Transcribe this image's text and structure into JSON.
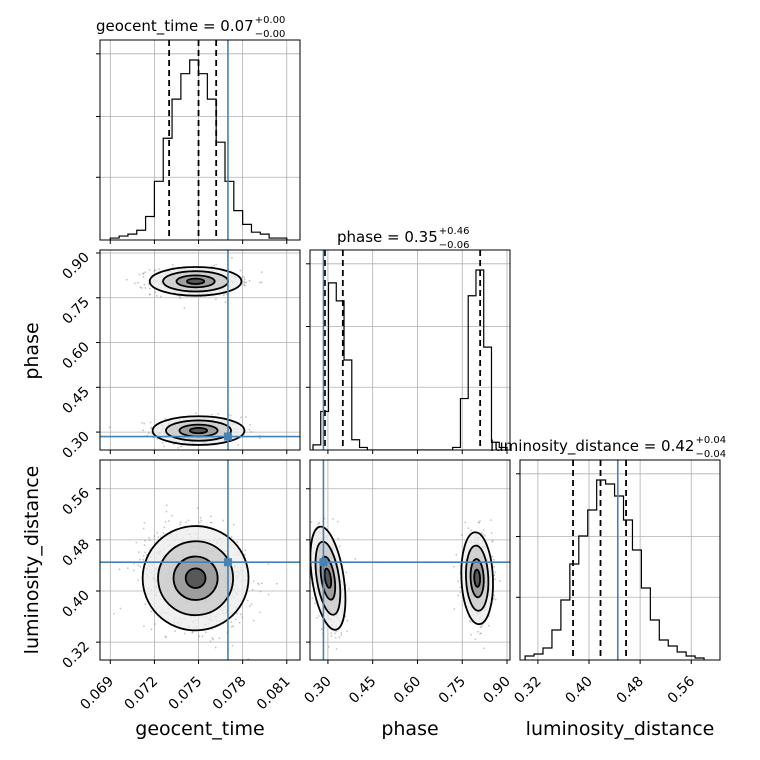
{
  "colors": {
    "truth": "#4682b4",
    "hist": "#000000",
    "grid": "#b0b0b0",
    "scatter": "#7f7f7f"
  },
  "chart_data": {
    "type": "corner",
    "parameters": [
      "geocent_time",
      "phase",
      "luminosity_distance"
    ],
    "truths": {
      "geocent_time": 0.077,
      "phase": 0.285,
      "luminosity_distance": 0.445
    },
    "titles": [
      {
        "base": "geocent_time = 0.07",
        "plus": "+0.00",
        "minus": "−0.00"
      },
      {
        "base": "phase = 0.35",
        "plus": "+0.46",
        "minus": "−0.06"
      },
      {
        "base": "luminosity_distance = 0.42",
        "plus": "+0.04",
        "minus": "−0.04"
      }
    ],
    "axis_labels": {
      "x": [
        "geocent_time",
        "phase",
        "luminosity_distance"
      ],
      "y": [
        "phase",
        "luminosity_distance"
      ]
    },
    "ticks": {
      "geocent_time": {
        "values": [
          0.069,
          0.072,
          0.075,
          0.078,
          0.081
        ],
        "labels": [
          "0.069",
          "0.072",
          "0.075",
          "0.078",
          "0.081"
        ],
        "range": [
          0.0683,
          0.0819
        ]
      },
      "phase": {
        "values": [
          0.3,
          0.45,
          0.6,
          0.75,
          0.9
        ],
        "labels": [
          "0.30",
          "0.45",
          "0.60",
          "0.75",
          "0.90"
        ],
        "range": [
          0.24,
          0.91
        ]
      },
      "luminosity_distance": {
        "values": [
          0.32,
          0.4,
          0.48,
          0.56
        ],
        "labels": [
          "0.32",
          "0.40",
          "0.48",
          "0.56"
        ],
        "range": [
          0.292,
          0.605
        ]
      }
    },
    "quantiles": {
      "geocent_time": [
        0.073,
        0.075,
        0.0762
      ],
      "phase": [
        0.29,
        0.35,
        0.81
      ],
      "luminosity_distance": [
        0.375,
        0.418,
        0.458
      ]
    },
    "histograms": {
      "geocent_time": {
        "edges_range": [
          0.069,
          0.081
        ],
        "counts": [
          1,
          2,
          3,
          5,
          12,
          30,
          52,
          72,
          85,
          92,
          85,
          72,
          50,
          30,
          15,
          8,
          4,
          3,
          1,
          1
        ]
      },
      "phase": {
        "edges_range": [
          0.25,
          0.9
        ],
        "counts": [
          2,
          15,
          65,
          58,
          35,
          4,
          1,
          0,
          0,
          0,
          0,
          0,
          0,
          0,
          0,
          0,
          0,
          0,
          1,
          20,
          60,
          70,
          40,
          3,
          1
        ]
      },
      "luminosity_distance": {
        "edges_range": [
          0.3,
          0.58
        ],
        "counts": [
          2,
          3,
          6,
          15,
          30,
          48,
          62,
          75,
          90,
          88,
          82,
          70,
          55,
          36,
          20,
          10,
          7,
          4,
          2,
          1
        ]
      }
    },
    "blobs_2d": {
      "phase_vs_geocent_time": [
        {
          "cx": 0.075,
          "cy": 0.305,
          "sx": 0.0013,
          "sy": 0.02,
          "rho": 0.0,
          "n": 520
        },
        {
          "cx": 0.0748,
          "cy": 0.805,
          "sx": 0.0013,
          "sy": 0.02,
          "rho": 0.0,
          "n": 480
        }
      ],
      "luminosity_distance_vs_geocent_time": [
        {
          "cx": 0.0748,
          "cy": 0.42,
          "sx": 0.0015,
          "sy": 0.034,
          "rho": -0.2,
          "n": 950
        }
      ],
      "luminosity_distance_vs_phase": [
        {
          "cx": 0.3,
          "cy": 0.42,
          "sx": 0.022,
          "sy": 0.034,
          "rho": -0.35,
          "n": 480
        },
        {
          "cx": 0.8,
          "cy": 0.42,
          "sx": 0.022,
          "sy": 0.03,
          "rho": -0.1,
          "n": 460
        }
      ]
    },
    "grid": true
  }
}
